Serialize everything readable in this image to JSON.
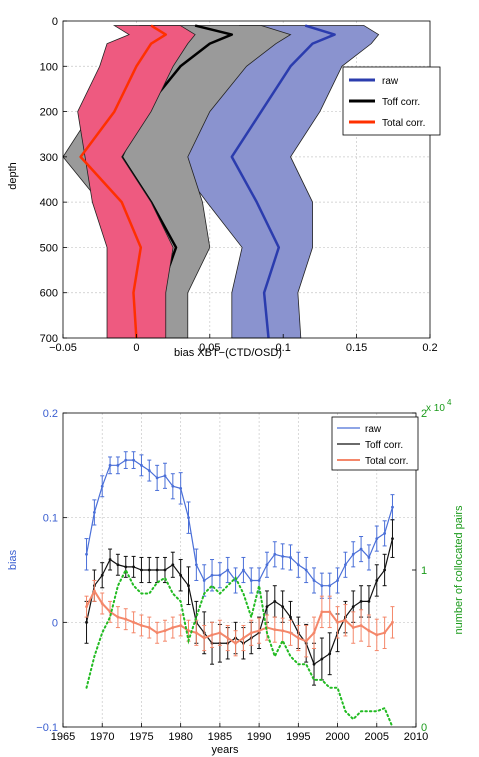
{
  "chart_data": [
    {
      "type": "line",
      "xlabel": "bias XBT−(CTD/OSD)",
      "ylabel": "depth",
      "xlim": [
        -0.05,
        0.2
      ],
      "ylim": [
        0,
        700
      ],
      "y_reversed": true,
      "grid": true,
      "legend": "right",
      "x_ticks": [
        "−0.05",
        "0",
        "0.05",
        "0.1",
        "0.15",
        "0.2"
      ],
      "y_ticks": [
        "0",
        "100",
        "200",
        "300",
        "400",
        "500",
        "600",
        "700"
      ],
      "depth": [
        10,
        30,
        50,
        100,
        200,
        300,
        400,
        500,
        600,
        700
      ],
      "series": [
        {
          "name": "raw",
          "color": "#2b3cae",
          "fill": "#8a93cf",
          "mean": [
            0.115,
            0.135,
            0.12,
            0.105,
            0.085,
            0.065,
            0.082,
            0.097,
            0.087,
            0.09
          ],
          "lower": [
            0.07,
            0.09,
            0.075,
            0.06,
            0.04,
            0.025,
            0.048,
            0.072,
            0.065,
            0.065
          ],
          "upper": [
            0.155,
            0.165,
            0.16,
            0.14,
            0.125,
            0.105,
            0.12,
            0.12,
            0.11,
            0.112
          ]
        },
        {
          "name": "Toff corr.",
          "color": "#000000",
          "fill": "#9a9a9a",
          "mean": [
            0.04,
            0.065,
            0.05,
            0.03,
            0.005,
            -0.01,
            0.01,
            0.027,
            0.016,
            0.018
          ],
          "lower": [
            0.002,
            0.025,
            0.01,
            -0.01,
            -0.03,
            -0.05,
            -0.025,
            0.005,
            -0.003,
            0.0
          ],
          "upper": [
            0.085,
            0.105,
            0.095,
            0.075,
            0.05,
            0.035,
            0.045,
            0.05,
            0.035,
            0.035
          ]
        },
        {
          "name": "Total corr.",
          "color": "#ff3000",
          "fill": "#ee5a80",
          "mean": [
            0.01,
            0.02,
            0.01,
            0.0,
            -0.015,
            -0.038,
            -0.01,
            0.003,
            -0.002,
            0.0
          ],
          "lower": [
            -0.015,
            -0.005,
            -0.02,
            -0.025,
            -0.04,
            -0.035,
            -0.03,
            -0.02,
            -0.02,
            -0.02
          ],
          "upper": [
            0.03,
            0.04,
            0.035,
            0.025,
            0.01,
            -0.01,
            0.01,
            0.025,
            0.02,
            0.02
          ]
        }
      ]
    },
    {
      "type": "line",
      "xlabel": "years",
      "ylabel": "bias",
      "y2label": "number of collocated pairs",
      "y2exponent": "x 10^4",
      "xlim": [
        1965,
        2010
      ],
      "ylim": [
        -0.1,
        0.2
      ],
      "y2lim": [
        0,
        2
      ],
      "grid": true,
      "legend": "top-right",
      "x_ticks": [
        "1965",
        "1970",
        "1975",
        "1980",
        "1985",
        "1990",
        "1995",
        "2000",
        "2005",
        "2010"
      ],
      "y_ticks": [
        "−0.1",
        "0",
        "0.1",
        "0.2"
      ],
      "y2_ticks": [
        "0",
        "1",
        "2"
      ],
      "x": [
        1968,
        1969,
        1970,
        1971,
        1972,
        1973,
        1974,
        1975,
        1976,
        1977,
        1978,
        1979,
        1980,
        1981,
        1982,
        1983,
        1984,
        1985,
        1986,
        1987,
        1988,
        1989,
        1990,
        1991,
        1992,
        1993,
        1994,
        1995,
        1996,
        1997,
        1998,
        1999,
        2000,
        2001,
        2002,
        2003,
        2004,
        2005,
        2006,
        2007
      ],
      "series": [
        {
          "name": "raw",
          "color": "#4a6fd8",
          "axis": "left",
          "errorbars": true,
          "values": [
            0.065,
            0.105,
            0.13,
            0.15,
            0.15,
            0.155,
            0.155,
            0.15,
            0.145,
            0.138,
            0.14,
            0.13,
            0.128,
            0.1,
            0.055,
            0.04,
            0.045,
            0.045,
            0.05,
            0.04,
            0.05,
            0.04,
            0.04,
            0.055,
            0.065,
            0.063,
            0.062,
            0.055,
            0.05,
            0.04,
            0.035,
            0.035,
            0.04,
            0.055,
            0.065,
            0.07,
            0.062,
            0.08,
            0.085,
            0.11
          ],
          "err": [
            0.015,
            0.012,
            0.01,
            0.008,
            0.008,
            0.008,
            0.008,
            0.01,
            0.01,
            0.012,
            0.012,
            0.012,
            0.015,
            0.015,
            0.015,
            0.015,
            0.015,
            0.012,
            0.012,
            0.012,
            0.012,
            0.012,
            0.012,
            0.012,
            0.012,
            0.012,
            0.012,
            0.012,
            0.012,
            0.012,
            0.012,
            0.012,
            0.012,
            0.012,
            0.012,
            0.012,
            0.012,
            0.012,
            0.012,
            0.012
          ]
        },
        {
          "name": "Toff corr.",
          "color": "#111111",
          "axis": "left",
          "errorbars": true,
          "values": [
            0.0,
            0.035,
            0.045,
            0.06,
            0.055,
            0.053,
            0.053,
            0.05,
            0.05,
            0.05,
            0.05,
            0.055,
            0.045,
            0.035,
            0.0,
            -0.01,
            -0.02,
            -0.02,
            -0.02,
            -0.015,
            -0.02,
            -0.015,
            -0.01,
            0.015,
            0.02,
            0.015,
            0.005,
            -0.01,
            -0.02,
            -0.04,
            -0.035,
            -0.03,
            -0.01,
            0.005,
            0.015,
            0.02,
            0.02,
            0.04,
            0.05,
            0.08
          ],
          "err": [
            0.02,
            0.015,
            0.012,
            0.01,
            0.01,
            0.01,
            0.01,
            0.012,
            0.012,
            0.012,
            0.012,
            0.012,
            0.015,
            0.018,
            0.02,
            0.02,
            0.02,
            0.018,
            0.015,
            0.015,
            0.015,
            0.015,
            0.015,
            0.015,
            0.015,
            0.015,
            0.015,
            0.015,
            0.018,
            0.02,
            0.02,
            0.02,
            0.018,
            0.015,
            0.015,
            0.015,
            0.015,
            0.015,
            0.015,
            0.018
          ]
        },
        {
          "name": "Total corr.",
          "color": "#f4876a",
          "axis": "left",
          "errorbars": true,
          "values": [
            0.015,
            0.03,
            0.018,
            0.01,
            0.005,
            0.003,
            0.0,
            -0.003,
            -0.005,
            -0.01,
            -0.008,
            -0.005,
            -0.003,
            -0.008,
            -0.01,
            -0.015,
            -0.012,
            -0.01,
            -0.015,
            -0.02,
            -0.015,
            -0.01,
            -0.008,
            -0.005,
            -0.007,
            -0.008,
            -0.01,
            -0.015,
            -0.018,
            -0.01,
            0.01,
            0.01,
            0.0,
            0.002,
            -0.005,
            -0.003,
            -0.008,
            -0.012,
            -0.01,
            0.0
          ],
          "err": [
            0.01,
            0.01,
            0.01,
            0.01,
            0.01,
            0.01,
            0.01,
            0.01,
            0.01,
            0.01,
            0.01,
            0.01,
            0.01,
            0.01,
            0.012,
            0.012,
            0.012,
            0.012,
            0.012,
            0.012,
            0.012,
            0.012,
            0.012,
            0.012,
            0.012,
            0.012,
            0.012,
            0.012,
            0.015,
            0.015,
            0.015,
            0.015,
            0.015,
            0.015,
            0.015,
            0.015,
            0.015,
            0.015,
            0.015,
            0.015
          ]
        },
        {
          "name": "",
          "color": "#22bb22",
          "axis": "right",
          "dotted": true,
          "x": [
            1968,
            1969,
            1970,
            1971,
            1972,
            1973,
            1974,
            1975,
            1976,
            1977,
            1978,
            1979,
            1980,
            1981,
            1982,
            1983,
            1984,
            1985,
            1986,
            1987,
            1988,
            1989,
            1990,
            1991,
            1992,
            1993,
            1994,
            1995,
            1996,
            1997,
            1998,
            1999,
            2000,
            2001,
            2002,
            2003,
            2004,
            2005,
            2006,
            2007
          ],
          "values": [
            0.25,
            0.45,
            0.6,
            0.7,
            0.9,
            1.0,
            0.9,
            0.85,
            0.85,
            0.92,
            0.95,
            0.85,
            0.8,
            0.55,
            0.7,
            0.85,
            0.9,
            0.85,
            0.9,
            0.95,
            0.85,
            0.7,
            0.9,
            0.6,
            0.45,
            0.55,
            0.45,
            0.4,
            0.4,
            0.3,
            0.3,
            0.25,
            0.25,
            0.1,
            0.05,
            0.1,
            0.1,
            0.1,
            0.12,
            0.0
          ]
        }
      ]
    }
  ]
}
